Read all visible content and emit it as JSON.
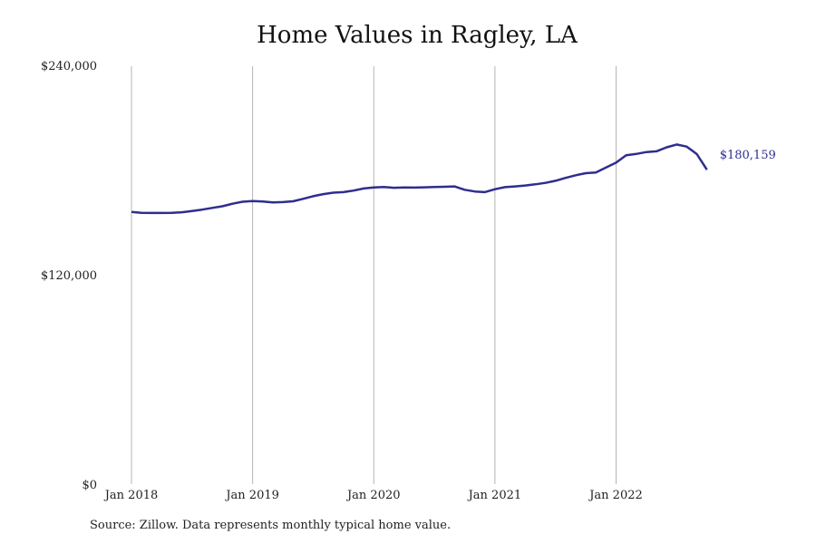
{
  "chart_data": {
    "type": "line",
    "title": "Home Values in Ragley, LA",
    "source": "Source: Zillow. Data represents monthly typical home value.",
    "ylim": [
      0,
      240000
    ],
    "yticks": [
      {
        "value": 0,
        "label": "$0"
      },
      {
        "value": 120000,
        "label": "$120,000"
      },
      {
        "value": 240000,
        "label": "$240,000"
      }
    ],
    "xticks": [
      {
        "value": "2018-01",
        "label": "Jan 2018"
      },
      {
        "value": "2019-01",
        "label": "Jan 2019"
      },
      {
        "value": "2020-01",
        "label": "Jan 2020"
      },
      {
        "value": "2021-01",
        "label": "Jan 2021"
      },
      {
        "value": "2022-01",
        "label": "Jan 2022"
      }
    ],
    "grid": "vertical",
    "line_color": "#2e2e8f",
    "end_label": "$180,159",
    "series": [
      {
        "x": [
          "2018-01",
          "2018-02",
          "2018-03",
          "2018-04",
          "2018-05",
          "2018-06",
          "2018-07",
          "2018-08",
          "2018-09",
          "2018-10",
          "2018-11",
          "2018-12",
          "2019-01",
          "2019-02",
          "2019-03",
          "2019-04",
          "2019-05",
          "2019-06",
          "2019-07",
          "2019-08",
          "2019-09",
          "2019-10",
          "2019-11",
          "2019-12",
          "2020-01",
          "2020-02",
          "2020-03",
          "2020-04",
          "2020-05",
          "2020-06",
          "2020-07",
          "2020-08",
          "2020-09",
          "2020-10",
          "2020-11",
          "2020-12",
          "2021-01",
          "2021-02",
          "2021-03",
          "2021-04",
          "2021-05",
          "2021-06",
          "2021-07",
          "2021-08",
          "2021-09",
          "2021-10",
          "2021-11",
          "2021-12",
          "2022-01",
          "2022-02",
          "2022-03",
          "2022-04",
          "2022-05",
          "2022-06",
          "2022-07",
          "2022-08",
          "2022-09",
          "2022-10"
        ],
        "values": [
          156000,
          155500,
          155400,
          155400,
          155500,
          155800,
          156500,
          157300,
          158300,
          159200,
          160700,
          161800,
          162200,
          161900,
          161400,
          161600,
          162100,
          163500,
          165000,
          166200,
          167000,
          167300,
          168200,
          169400,
          170000,
          170300,
          169800,
          170000,
          169900,
          170100,
          170300,
          170400,
          170600,
          168700,
          167700,
          167300,
          169000,
          170200,
          170600,
          171100,
          171800,
          172600,
          173800,
          175500,
          177000,
          178200,
          178600,
          181400,
          184200,
          188400,
          189200,
          190300,
          190700,
          193000,
          194600,
          193400,
          189100,
          180159
        ]
      }
    ]
  }
}
